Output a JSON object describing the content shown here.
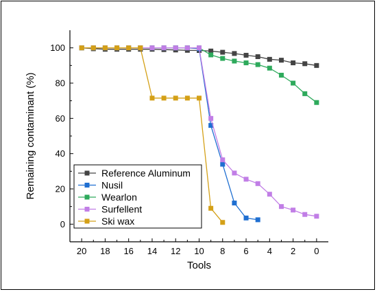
{
  "chart_data": {
    "type": "line",
    "title": "",
    "xlabel": "Tools",
    "ylabel": "Remaining contaminant (%)",
    "xlim": [
      21,
      -1
    ],
    "ylim": [
      -10,
      110
    ],
    "x_ticks": [
      20,
      18,
      16,
      14,
      12,
      10,
      8,
      6,
      4,
      2,
      0
    ],
    "y_ticks": [
      0,
      20,
      40,
      60,
      80,
      100
    ],
    "x_reversed": true,
    "grid": false,
    "legend_position": "bottom-left",
    "series": [
      {
        "name": "Reference Aluminum",
        "color": "#444444",
        "x": [
          20,
          19,
          18,
          17,
          16,
          15,
          14,
          13,
          12,
          11,
          10,
          9,
          8,
          7,
          6,
          5,
          4,
          3,
          2,
          1,
          0
        ],
        "y": [
          100,
          99.5,
          99.2,
          99.2,
          99.2,
          99.2,
          99.2,
          99,
          98.8,
          98.6,
          98.5,
          98.2,
          97.5,
          96.8,
          95.8,
          95,
          93.5,
          93,
          91.5,
          91,
          90
        ]
      },
      {
        "name": "Nusil",
        "color": "#1f6fd1",
        "x": [
          20,
          19,
          18,
          17,
          16,
          15,
          14,
          13,
          12,
          11,
          10,
          9,
          8,
          7,
          6,
          5
        ],
        "y": [
          100,
          100,
          100,
          100,
          100,
          100,
          100,
          100,
          100,
          100,
          99.5,
          56,
          34,
          12,
          3.5,
          2.5
        ]
      },
      {
        "name": "Wearlon",
        "color": "#2eaa5c",
        "x": [
          20,
          19,
          18,
          17,
          16,
          15,
          14,
          13,
          12,
          11,
          10,
          9,
          8,
          7,
          6,
          5,
          4,
          3,
          2,
          1,
          0
        ],
        "y": [
          100,
          100,
          100,
          100,
          100,
          100,
          100,
          100,
          100,
          100,
          100,
          96,
          94,
          92.5,
          91.5,
          90.5,
          88.5,
          84.5,
          80,
          74,
          69
        ]
      },
      {
        "name": "Surfellent",
        "color": "#c17ee6",
        "x": [
          20,
          19,
          18,
          17,
          16,
          15,
          14,
          13,
          12,
          11,
          10,
          9,
          8,
          7,
          6,
          5,
          4,
          3,
          2,
          1,
          0
        ],
        "y": [
          100,
          100,
          100,
          100,
          100,
          100,
          100,
          100,
          100,
          100,
          100,
          60,
          36.5,
          29,
          25.5,
          23,
          17,
          10,
          8,
          5.5,
          4.5
        ]
      },
      {
        "name": "Ski wax",
        "color": "#d4a017",
        "x": [
          20,
          19,
          18,
          17,
          16,
          15,
          14,
          13,
          12,
          11,
          10,
          9,
          8
        ],
        "y": [
          100,
          100,
          100,
          100,
          100,
          100,
          71.5,
          71.5,
          71.5,
          71.5,
          71.5,
          9,
          1
        ]
      }
    ]
  }
}
